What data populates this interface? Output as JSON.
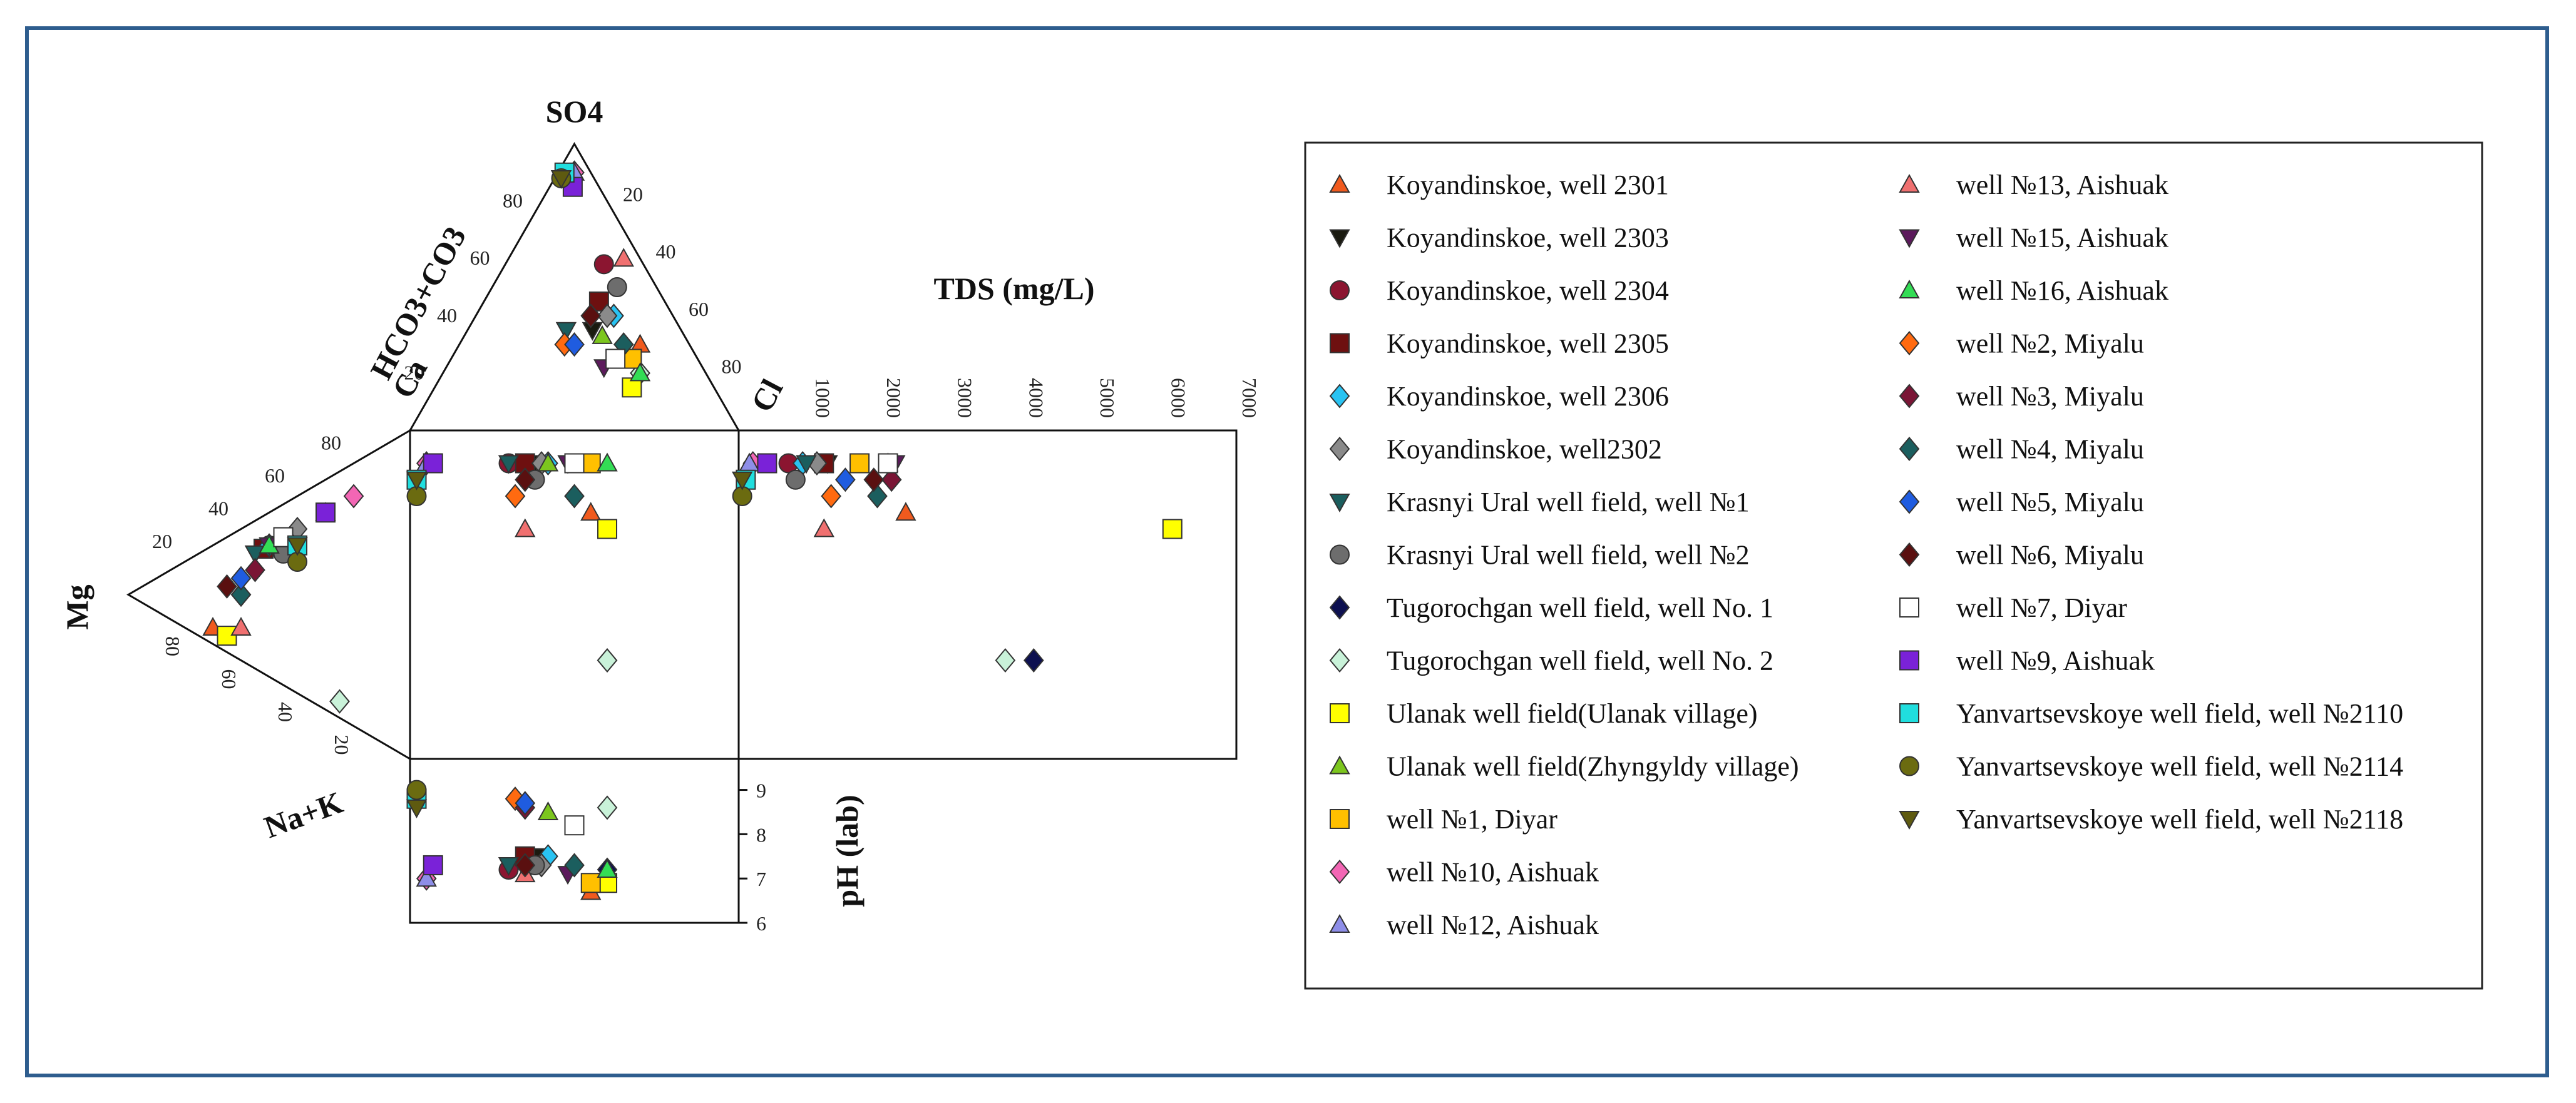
{
  "chart_data": {
    "type": "durov",
    "title": "",
    "labels": {
      "so4": "SO4",
      "hco3": "HCO3+CO3",
      "cl": "Cl",
      "ca": "Ca",
      "mg": "Mg",
      "nak": "Na+K",
      "tds": "TDS (mg/L)",
      "ph": "pH (lab)"
    },
    "anion_ticks": [
      "20",
      "40",
      "60",
      "80"
    ],
    "anion_ticks_right": [
      "20",
      "40",
      "60",
      "80"
    ],
    "cation_ticks": [
      "20",
      "40",
      "60",
      "80"
    ],
    "cation_ticks_left": [
      "20",
      "40",
      "60",
      "80"
    ],
    "tds_ticks": [
      "1000",
      "2000",
      "3000",
      "4000",
      "5000",
      "6000",
      "7000"
    ],
    "tds_range": [
      0,
      7000
    ],
    "ph_ticks": [
      "6",
      "7",
      "8",
      "9"
    ],
    "ph_range": [
      6,
      9.7
    ],
    "series": [
      {
        "name": "Koyandinskoe, well  2301",
        "marker": "triangle-up",
        "color": "#f05a1e",
        "anion": [
          15,
          30,
          55
        ],
        "cation": [
          70,
          5,
          25
        ],
        "tds": 2350,
        "ph": 6.7
      },
      {
        "name": "Koyandinskoe, well 2303",
        "marker": "triangle-down",
        "color": "#1a1a10",
        "anion": [
          27,
          35,
          38
        ],
        "cation": [
          55,
          35,
          10
        ],
        "tds": 1250,
        "ph": 7.5
      },
      {
        "name": "Koyandinskoe, well 2304",
        "marker": "circle",
        "color": "#8b1530",
        "anion": [
          12,
          58,
          30
        ],
        "cation": [
          50,
          40,
          10
        ],
        "tds": 700,
        "ph": 7.2
      },
      {
        "name": "Koyandinskoe, well 2305",
        "marker": "square",
        "color": "#6e1010",
        "anion": [
          20,
          45,
          35
        ],
        "cation": [
          52,
          38,
          10
        ],
        "tds": 1200,
        "ph": 7.5
      },
      {
        "name": "Koyandinskoe, well 2306",
        "marker": "diamond",
        "color": "#29c3f2",
        "anion": [
          18,
          40,
          42
        ],
        "cation": [
          50,
          40,
          10
        ],
        "tds": 900,
        "ph": 7.5
      },
      {
        "name": "Koyandinskoe, well2302",
        "marker": "diamond",
        "color": "#8a8a8a",
        "anion": [
          20,
          40,
          40
        ],
        "cation": [
          40,
          50,
          10
        ],
        "tds": 1100,
        "ph": 7.3
      },
      {
        "name": "Krasnyi Ural well field, well №1",
        "marker": "triangle-down",
        "color": "#1b5e5e",
        "anion": [
          35,
          35,
          30
        ],
        "cation": [
          55,
          35,
          10
        ],
        "tds": 950,
        "ph": 7.3
      },
      {
        "name": "Krasnyi Ural well field, well №2",
        "marker": "circle",
        "color": "#6d6d6d",
        "anion": [
          12,
          50,
          38
        ],
        "cation": [
          45,
          40,
          15
        ],
        "tds": 800,
        "ph": 7.3
      },
      {
        "name": "Tugorochgan well field, well No. 1",
        "marker": "diamond",
        "color": "#0d1050",
        "anion": [
          20,
          20,
          60
        ],
        "cation": [
          25,
          5,
          70
        ],
        "tds": 4150,
        "ph": 7.2
      },
      {
        "name": "Tugorochgan well field, well No. 2",
        "marker": "diamond",
        "color": "#c9f2d9",
        "anion": [
          20,
          20,
          60
        ],
        "cation": [
          25,
          5,
          70
        ],
        "tds": 3750,
        "ph": 8.6
      },
      {
        "name": "Ulanak well field(Ulanak village)",
        "marker": "square",
        "color": "#ffff00",
        "anion": [
          25,
          15,
          60
        ],
        "cation": [
          65,
          5,
          30
        ],
        "tds": 6100,
        "ph": 6.9
      },
      {
        "name": "Ulanak well field(Zhyngyldy village)",
        "marker": "triangle-up",
        "color": "#7cc61e",
        "anion": [
          25,
          33,
          42
        ],
        "cation": [
          50,
          40,
          10
        ],
        "tds": 2100,
        "ph": 8.5
      },
      {
        "name": "well №1, Diyar",
        "marker": "square",
        "color": "#ffc000",
        "anion": [
          20,
          25,
          55
        ],
        "cation": [
          45,
          45,
          10
        ],
        "tds": 1700,
        "ph": 6.9
      },
      {
        "name": "well №10, Aishuak",
        "marker": "diamond",
        "color": "#f266b4",
        "anion": [
          5,
          90,
          5
        ],
        "cation": [
          20,
          70,
          10
        ],
        "tds": 200,
        "ph": 7.0
      },
      {
        "name": "well №12, Aishuak",
        "marker": "triangle-up",
        "color": "#8e8ee8",
        "anion": [
          5,
          90,
          5
        ],
        "cation": [
          30,
          60,
          10
        ],
        "tds": 150,
        "ph": 7.0
      },
      {
        "name": "well №13, Aishuak",
        "marker": "triangle-up",
        "color": "#f07070",
        "anion": [
          5,
          60,
          35
        ],
        "cation": [
          60,
          10,
          30
        ],
        "tds": 1200,
        "ph": 7.1
      },
      {
        "name": "well №15, Aishuak",
        "marker": "triangle-down",
        "color": "#5c1a5c",
        "anion": [
          30,
          22,
          48
        ],
        "cation": [
          50,
          40,
          10
        ],
        "tds": 2200,
        "ph": 7.1
      },
      {
        "name": "well №16, Aishuak",
        "marker": "triangle-up",
        "color": "#33dd55",
        "anion": [
          20,
          20,
          60
        ],
        "cation": [
          50,
          40,
          10
        ],
        "tds": 2100,
        "ph": 7.2
      },
      {
        "name": "well №2, Miyalu",
        "marker": "diamond",
        "color": "#ff6a10",
        "anion": [
          38,
          30,
          32
        ],
        "cation": [
          60,
          20,
          20
        ],
        "tds": 1300,
        "ph": 8.8
      },
      {
        "name": "well №3, Miyalu",
        "marker": "diamond",
        "color": "#7a1535",
        "anion": [
          25,
          40,
          35
        ],
        "cation": [
          55,
          30,
          15
        ],
        "tds": 2150,
        "ph": 8.6
      },
      {
        "name": "well №4, Miyalu",
        "marker": "diamond",
        "color": "#1b5e5e",
        "anion": [
          20,
          30,
          50
        ],
        "cation": [
          60,
          20,
          20
        ],
        "tds": 1950,
        "ph": 7.3
      },
      {
        "name": "well №5, Miyalu",
        "marker": "diamond",
        "color": "#1f5ce0",
        "anion": [
          35,
          30,
          35
        ],
        "cation": [
          60,
          25,
          15
        ],
        "tds": 1500,
        "ph": 8.7
      },
      {
        "name": "well №6, Miyalu",
        "marker": "diamond",
        "color": "#5a1010",
        "anion": [
          25,
          40,
          35
        ],
        "cation": [
          65,
          20,
          15
        ],
        "tds": 1900,
        "ph": 7.3
      },
      {
        "name": "well №7, Diyar",
        "marker": "square",
        "color": "#ffffff",
        "anion": [
          25,
          25,
          50
        ],
        "cation": [
          45,
          45,
          10
        ],
        "tds": 2100,
        "ph": 8.2
      },
      {
        "name": "well №9, Aishuak",
        "marker": "square",
        "color": "#7a22d8",
        "anion": [
          8,
          85,
          7
        ],
        "cation": [
          30,
          60,
          10
        ],
        "tds": 400,
        "ph": 7.3
      },
      {
        "name": "Yanvartsevskoye well field, well  №2110",
        "marker": "square",
        "color": "#20dede",
        "anion": [
          8,
          90,
          2
        ],
        "cation": [
          40,
          45,
          15
        ],
        "tds": 100,
        "ph": 8.8
      },
      {
        "name": "Yanvartsevskoye well field, well  №2114",
        "marker": "circle",
        "color": "#6b6b10",
        "anion": [
          10,
          88,
          2
        ],
        "cation": [
          40,
          40,
          20
        ],
        "tds": 50,
        "ph": 9.0
      },
      {
        "name": "Yanvartsevskoye well field, well №2118",
        "marker": "triangle-down",
        "color": "#5e5a10",
        "anion": [
          10,
          88,
          2
        ],
        "cation": [
          40,
          45,
          15
        ],
        "tds": 50,
        "ph": 8.6
      }
    ]
  }
}
